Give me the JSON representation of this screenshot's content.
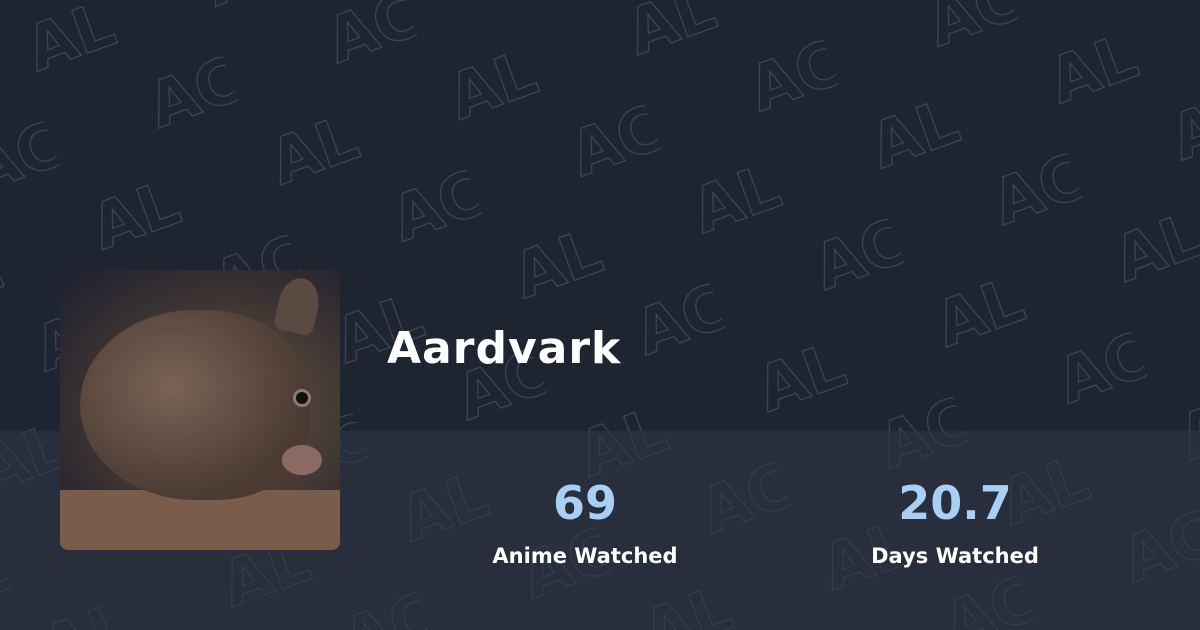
{
  "profile": {
    "username": "Aardvark",
    "avatar_alt": "wombat photo"
  },
  "stats": [
    {
      "value": "69",
      "label": "Anime Watched"
    },
    {
      "value": "20.7",
      "label": "Days Watched"
    }
  ],
  "background": {
    "pattern_letters": [
      "AL",
      "AC"
    ],
    "color": "#1f2431",
    "pattern_stroke": "#4a5568"
  },
  "colors": {
    "stat_value": "#a8cff5",
    "text": "#ffffff"
  }
}
